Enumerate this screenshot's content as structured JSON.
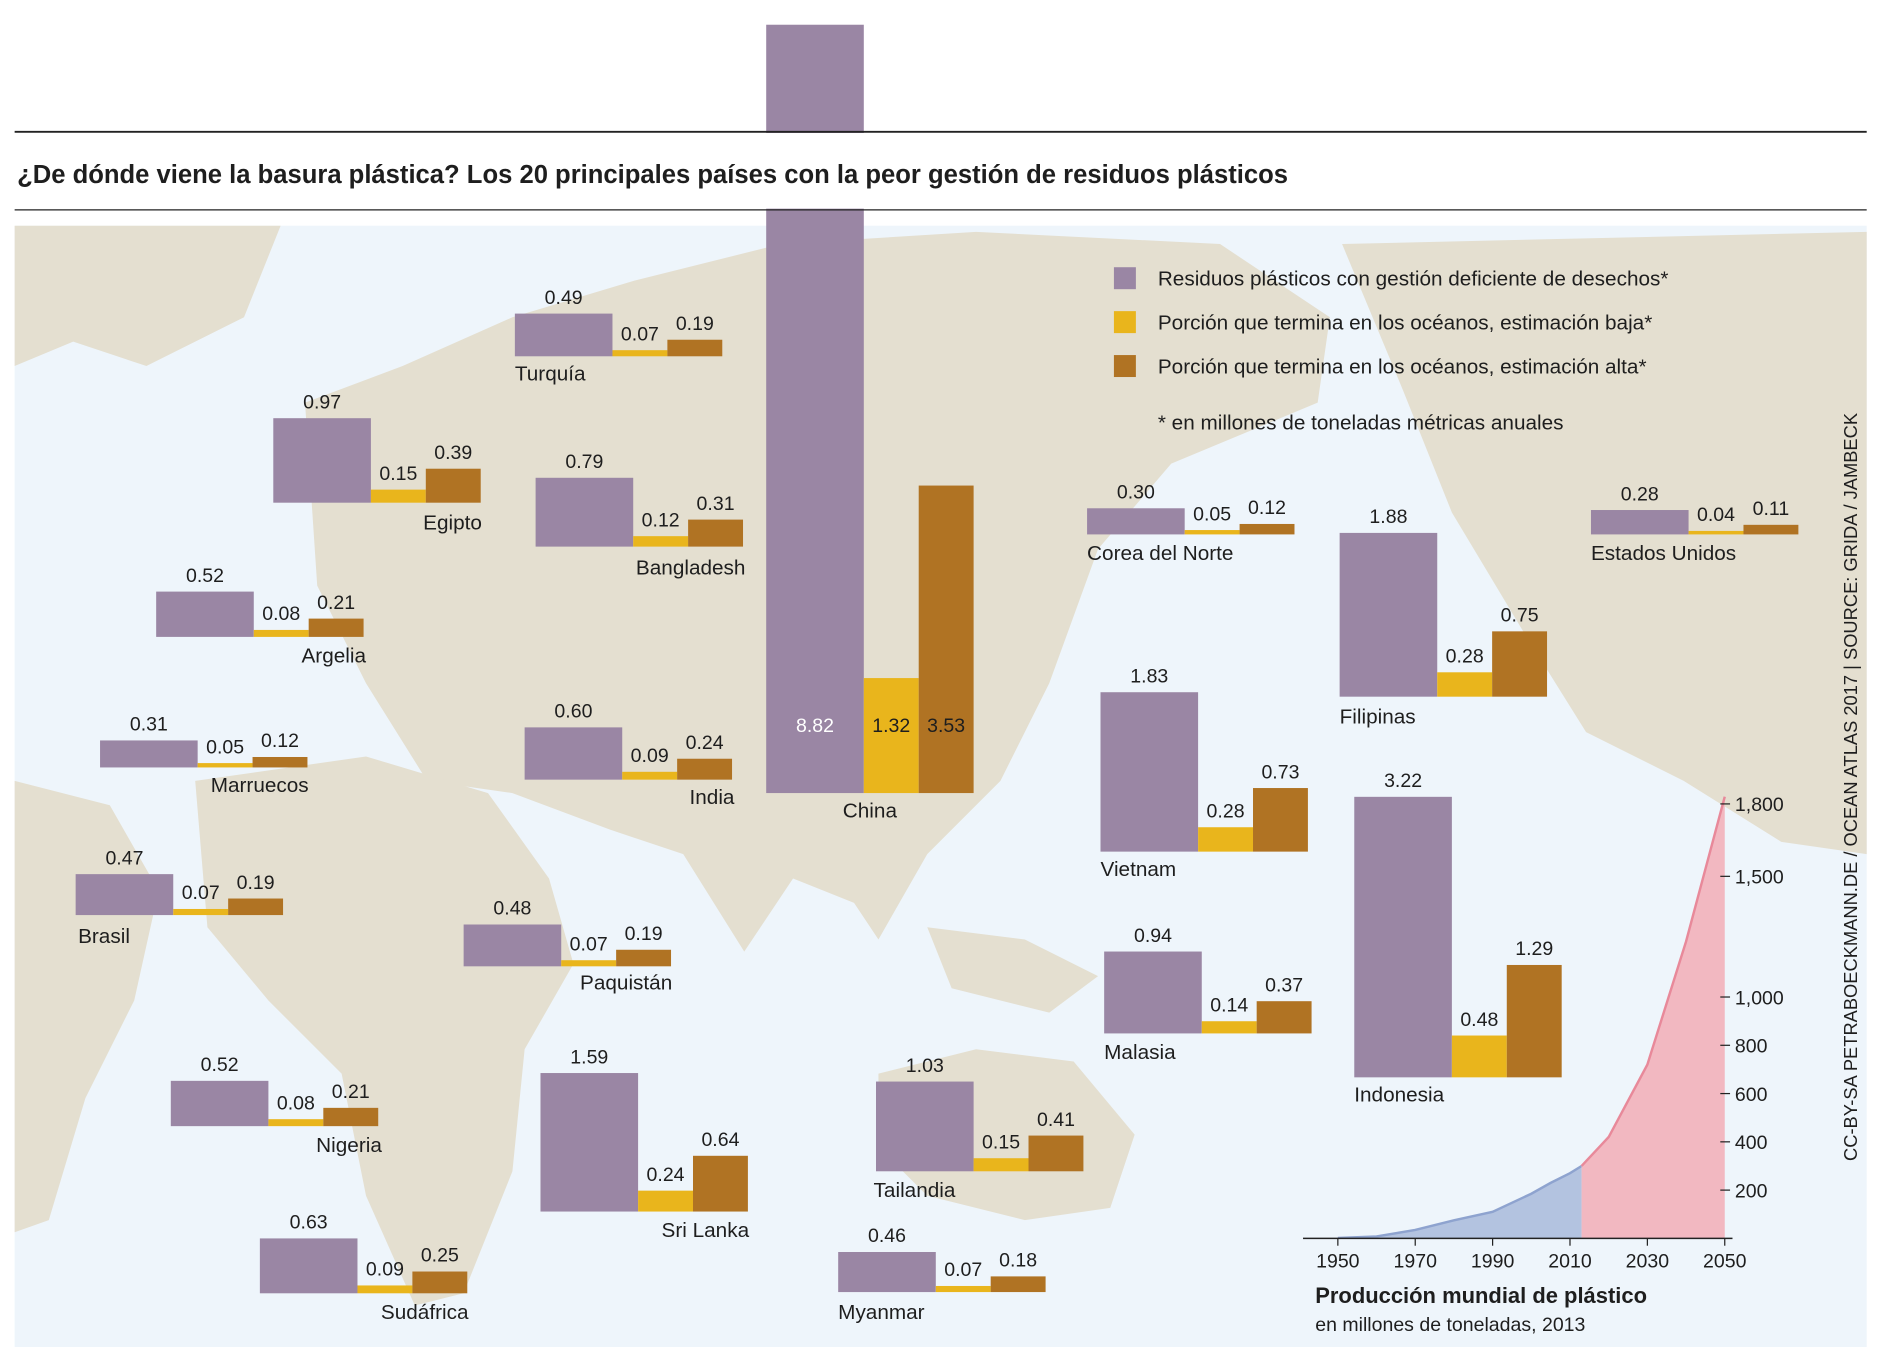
{
  "source": "CC-BY-SA PETRABOECKMANN.DE / OCEAN ATLAS 2017 | SOURCE: GRIDA / JAMBECK",
  "chart_data": [
    {
      "type": "bar",
      "title": "¿De dónde viene la basura plástica? Los 20 principales países con la peor gestión de residuos plásticos",
      "note": "* en millones de toneladas métricas anuales",
      "categories": [
        "China",
        "Indonesia",
        "Filipinas",
        "Vietnam",
        "Sri Lanka",
        "Tailandia",
        "Egipto",
        "Malasia",
        "Nigeria",
        "Bangladesh",
        "Sudáfrica",
        "India",
        "Argelia",
        "Turquía",
        "Paquistán",
        "Brasil",
        "Myanmar",
        "Marruecos",
        "Corea del Norte",
        "Estados Unidos"
      ],
      "series": [
        {
          "name": "Residuos plásticos con gestión deficiente de desechos*",
          "color": "#9a86a4",
          "values": [
            8.82,
            3.22,
            1.88,
            1.83,
            1.59,
            1.03,
            0.97,
            0.94,
            0.52,
            0.79,
            0.63,
            0.6,
            0.52,
            0.49,
            0.48,
            0.47,
            0.46,
            0.31,
            0.3,
            0.28
          ],
          "value_labels": [
            "8.82",
            "3.22",
            "1.88",
            "1.83",
            "1.59",
            "1.03",
            "0.97",
            "0.94",
            "0.52",
            "0.79",
            "0.63",
            "0.60",
            "0.52",
            "0.49",
            "0.48",
            "0.47",
            "0.46",
            "0.31",
            "0.30",
            "0.28"
          ]
        },
        {
          "name": "Porción que termina en los océanos, estimación baja*",
          "color": "#e9b51c",
          "values": [
            1.32,
            0.48,
            0.28,
            0.28,
            0.24,
            0.15,
            0.15,
            0.14,
            0.08,
            0.12,
            0.09,
            0.09,
            0.08,
            0.07,
            0.07,
            0.07,
            0.07,
            0.05,
            0.05,
            0.04
          ],
          "value_labels": [
            "1.32",
            "0.48",
            "0.28",
            "0.28",
            "0.24",
            "0.15",
            "0.15",
            "0.14",
            "0.08",
            "0.12",
            "0.09",
            "0.09",
            "0.08",
            "0.07",
            "0.07",
            "0.07",
            "0.07",
            "0.05",
            "0.05",
            "0.04"
          ]
        },
        {
          "name": "Porción que termina en los océanos, estimación alta*",
          "color": "#b07323",
          "values": [
            3.53,
            1.29,
            0.75,
            0.73,
            0.64,
            0.41,
            0.39,
            0.37,
            0.21,
            0.31,
            0.25,
            0.24,
            0.21,
            0.19,
            0.19,
            0.19,
            0.18,
            0.12,
            0.12,
            0.11
          ],
          "value_labels": [
            "3.53",
            "1.29",
            "0.75",
            "0.73",
            "0.64",
            "0.41",
            "0.39",
            "0.37",
            "0.21",
            "0.31",
            "0.25",
            "0.24",
            "0.21",
            "0.19",
            "0.19",
            "0.19",
            "0.18",
            "0.12",
            "0.12",
            "0.11"
          ]
        }
      ]
    },
    {
      "type": "area",
      "title": "Producción mundial de plástico",
      "subtitle": "en millones de toneladas, 2013",
      "series": [
        {
          "color": "#b3c3e0",
          "line_color": "#8ea3cf",
          "x": [
            1950,
            1960,
            1970,
            1980,
            1990,
            2000,
            2005,
            2010,
            2013
          ],
          "values": [
            2,
            8,
            35,
            75,
            110,
            185,
            230,
            270,
            300
          ]
        },
        {
          "color": "#f2b8c1",
          "line_color": "#e8899a",
          "x": [
            2013,
            2020,
            2030,
            2040,
            2050
          ],
          "values": [
            300,
            420,
            720,
            1230,
            1830
          ]
        }
      ],
      "xlim": [
        1941,
        2052
      ],
      "ylim": [
        0,
        1850
      ],
      "xticks": [
        1950,
        1970,
        1990,
        2010,
        2030,
        2050
      ],
      "yticks": [
        200,
        400,
        600,
        800,
        {
          "value": 1000,
          "label": "1,000"
        },
        {
          "value": 1500,
          "label": "1,500"
        },
        {
          "value": 1800,
          "label": "1,800"
        }
      ]
    }
  ]
}
